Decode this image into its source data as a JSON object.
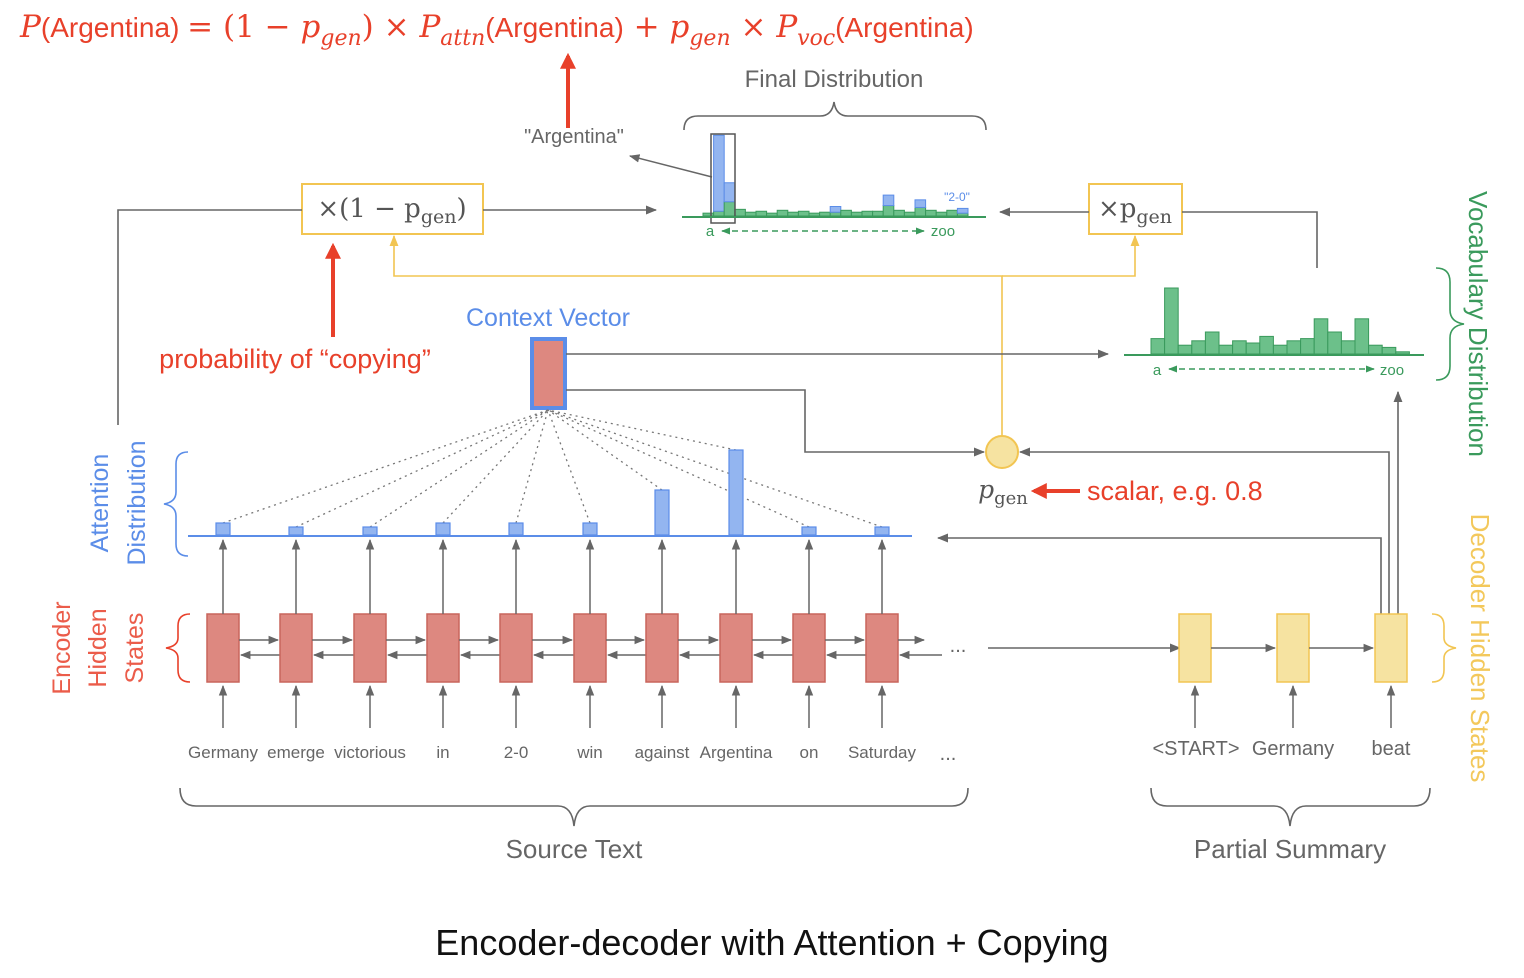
{
  "formula": {
    "label_P": "P",
    "word": "Argentina",
    "eq_open": "= (1 − ",
    "p": "p",
    "gen": "gen",
    "close_times": ") × ",
    "attn": "attn",
    "plus": " + ",
    "times": " × ",
    "voc": "voc"
  },
  "final_distribution": {
    "title": "Final Distribution",
    "argentina_label": "\"Argentina\"",
    "tag_2_0": "\"2-0\"",
    "axis_start": "a",
    "axis_end": "zoo",
    "blue_values": [
      0,
      8,
      2.0,
      0,
      0,
      0,
      0,
      0,
      0,
      0,
      0,
      0,
      0.6,
      0,
      0,
      0,
      0,
      1.1,
      0,
      0,
      0.8,
      0,
      0,
      0,
      0.5
    ],
    "green_values": [
      0.3,
      0.5,
      1.5,
      0.7,
      0.4,
      0.5,
      0.3,
      0.6,
      0.4,
      0.5,
      0.3,
      0.4,
      0.4,
      0.6,
      0.4,
      0.5,
      0.5,
      1.1,
      0.6,
      0.4,
      0.9,
      0.6,
      0.4,
      0.6,
      0.3
    ]
  },
  "multiplier_left": {
    "label": "×(1 − p",
    "sub": "gen",
    "close": ")"
  },
  "multiplier_right": {
    "label": "×p",
    "sub": "gen"
  },
  "vocab_distribution": {
    "title": "Vocabulary Distribution",
    "axis_start": "a",
    "axis_end": "zoo",
    "values": [
      0.7,
      3.0,
      0.4,
      0.6,
      1.0,
      0.4,
      0.6,
      0.5,
      0.8,
      0.4,
      0.6,
      0.7,
      1.6,
      1.0,
      0.6,
      1.6,
      0.4,
      0.3,
      0.1
    ]
  },
  "context_vector": {
    "label": "Context Vector"
  },
  "copy_annotation": "probability of “copying”",
  "pgen": {
    "p": "p",
    "sub": "gen",
    "annotation": "scalar, e.g. 0.8"
  },
  "attention": {
    "label_line1": "Attention",
    "label_line2": "Distribution",
    "values": [
      0.12,
      0.08,
      0.08,
      0.12,
      0.12,
      0.12,
      0.45,
      0.85,
      0.08,
      0.08
    ]
  },
  "encoder": {
    "label_line1": "Encoder",
    "label_line2": "Hidden",
    "label_line3": "States",
    "tokens": [
      "Germany",
      "emerge",
      "victorious",
      "in",
      "2-0",
      "win",
      "against",
      "Argentina",
      "on",
      "Saturday"
    ],
    "ellipsis": "..."
  },
  "decoder": {
    "label": "Decoder Hidden States",
    "tokens": [
      "<START>",
      "Germany",
      "beat"
    ]
  },
  "source_text_label": "Source Text",
  "partial_summary_label": "Partial Summary",
  "caption": "Encoder-decoder with Attention + Copying",
  "colors": {
    "red": "#e8402a",
    "encoder_fill": "#dd8880",
    "encoder_stroke": "#c8655c",
    "attn_blue": "#5b8de8",
    "blue_fill": "#93b5f0",
    "green": "#3a9a5c",
    "green_fill": "#6cc08a",
    "yellow": "#f2c552",
    "yellow_fill": "#f6e3a1",
    "gray": "#666666"
  }
}
